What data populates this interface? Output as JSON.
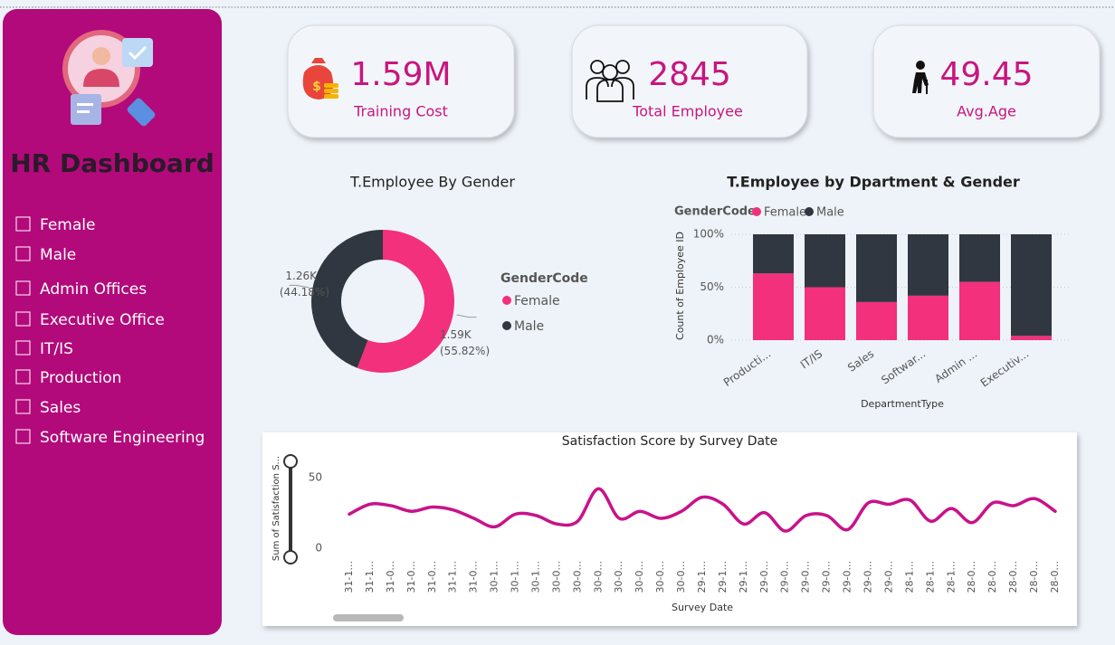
{
  "sidebar": {
    "title": "HR Dashboard",
    "filters": [
      "Female",
      "Male",
      "Admin Offices",
      "Executive Office",
      "IT/IS",
      "Production",
      "Sales",
      "Software Engineering"
    ]
  },
  "kpis": [
    {
      "value": "1.59M",
      "label": "Training Cost"
    },
    {
      "value": "2845",
      "label": "Total Employee"
    },
    {
      "value": "49.45",
      "label": "Avg.Age"
    }
  ],
  "chart_data": [
    {
      "type": "pie",
      "donut": true,
      "title": "T.Employee By Gender",
      "legend_title": "GenderCode",
      "categories": [
        "Female",
        "Male"
      ],
      "values": [
        1588,
        1257
      ],
      "value_labels": [
        "1.59K",
        "1.26K"
      ],
      "percent_labels": [
        "(55.82%)",
        "(44.18%)"
      ],
      "colors": [
        "#f2307c",
        "#313740"
      ]
    },
    {
      "type": "stacked_bar",
      "title": "T.Employee by Dpartment & Gender",
      "legend_title": "GenderCode",
      "x_label": "DepartmentType",
      "y_label": "Count of Employee ID",
      "categories": [
        "Producti...",
        "IT/IS",
        "Sales",
        "Softwar...",
        "Admin ...",
        "Executiv..."
      ],
      "series": [
        {
          "name": "Female",
          "color": "#f2307c",
          "values": [
            63,
            50,
            36,
            42,
            55,
            4
          ]
        },
        {
          "name": "Male",
          "color": "#313740",
          "values": [
            37,
            50,
            64,
            58,
            45,
            96
          ]
        }
      ],
      "ylim": [
        0,
        100
      ],
      "yticks": [
        {
          "value": 0,
          "label": "0%"
        },
        {
          "value": 50,
          "label": "50%"
        },
        {
          "value": 100,
          "label": "100%"
        }
      ],
      "grid": true
    },
    {
      "type": "line",
      "title": "Satisfaction Score by Survey Date",
      "x_label": "Survey Date",
      "y_label": "Sum of Satisfaction S...",
      "categories": [
        "31-1...",
        "31-1...",
        "31-0...",
        "31-0...",
        "31-0...",
        "31-1...",
        "31-0...",
        "30-1...",
        "30-1...",
        "30-1...",
        "30-0...",
        "30-0...",
        "30-0...",
        "30-0...",
        "30-0...",
        "30-0...",
        "30-0...",
        "29-1...",
        "29-1...",
        "29-1...",
        "29-0...",
        "29-0...",
        "29-0...",
        "29-0...",
        "29-0...",
        "29-0...",
        "29-0...",
        "28-1...",
        "28-1...",
        "28-1...",
        "28-0...",
        "28-0...",
        "28-0...",
        "28-0...",
        "28-0..."
      ],
      "series": [
        {
          "name": "Sum of Satisfaction Score",
          "color": "#c8128a",
          "values": [
            24,
            31,
            30,
            26,
            29,
            27,
            21,
            15,
            24,
            23,
            17,
            19,
            42,
            21,
            26,
            21,
            26,
            36,
            31,
            17,
            25,
            12,
            23,
            23,
            13,
            32,
            31,
            34,
            19,
            28,
            18,
            32,
            30,
            35,
            26
          ]
        }
      ],
      "ylim": [
        -4,
        56
      ],
      "yticks": [
        0,
        50
      ]
    }
  ]
}
